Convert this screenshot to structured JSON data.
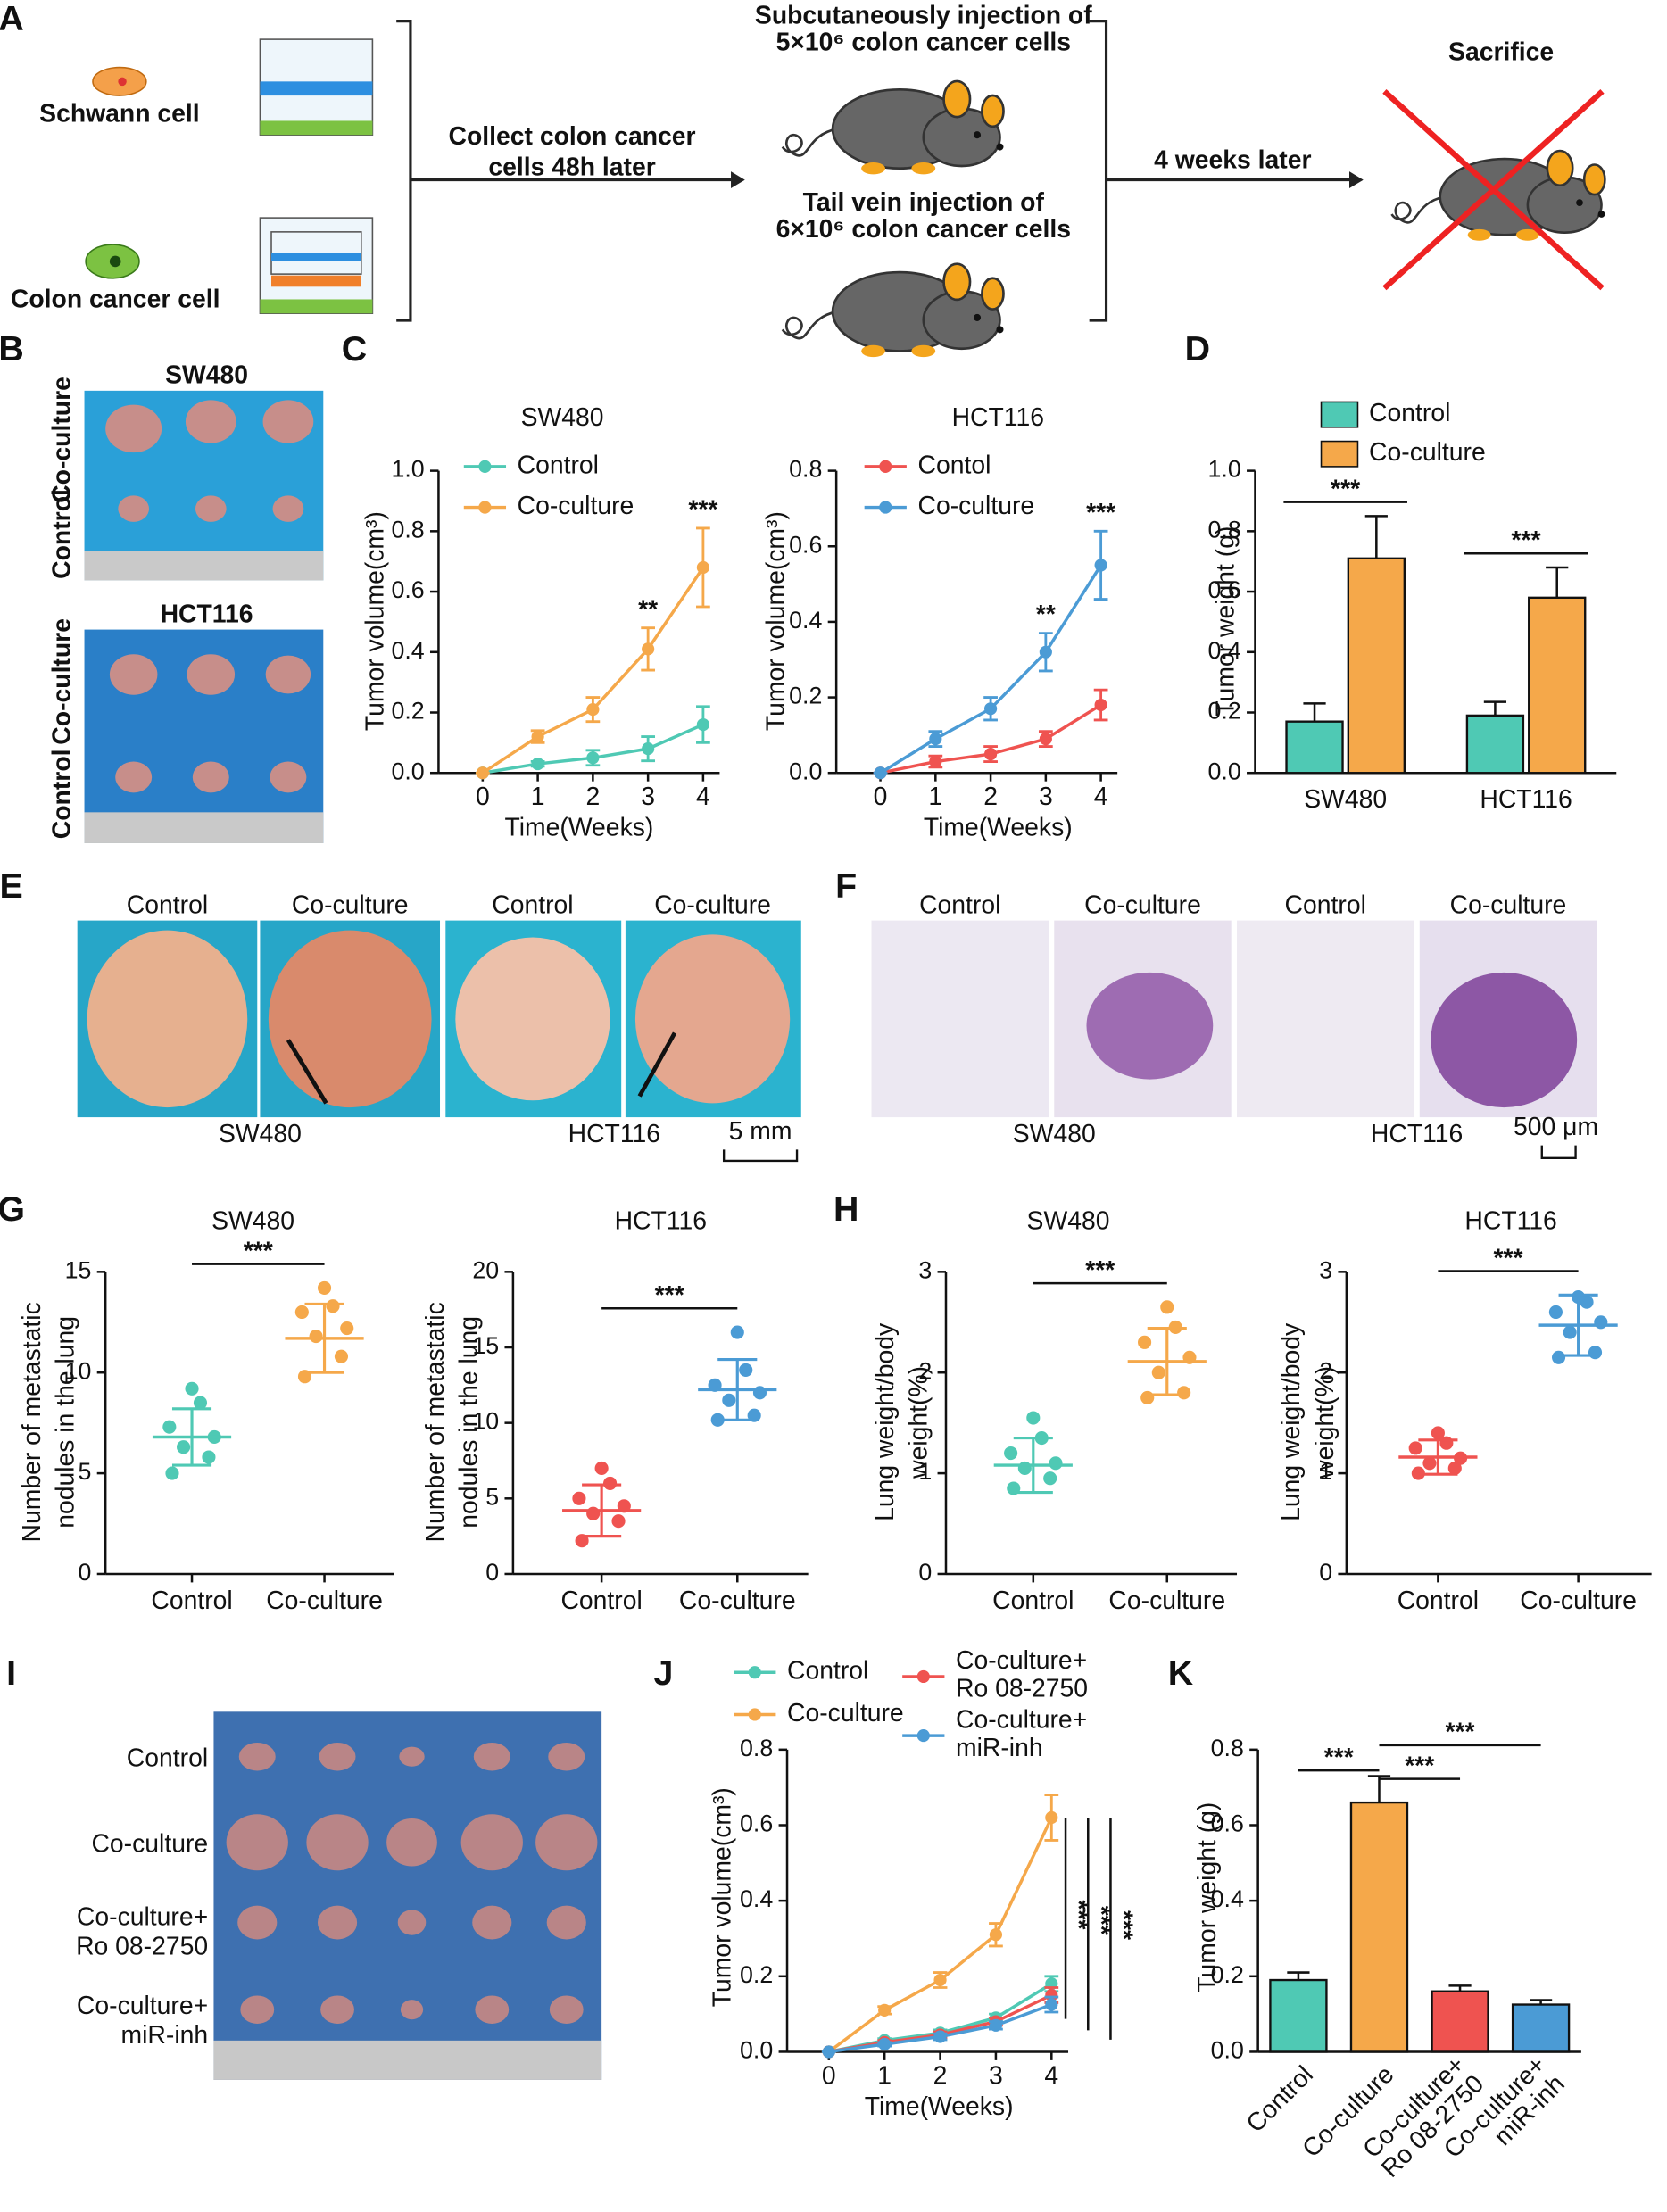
{
  "panel_labels": [
    "A",
    "B",
    "C",
    "D",
    "E",
    "F",
    "G",
    "H",
    "I",
    "J",
    "K"
  ],
  "schematic": {
    "cell_1": "Schwann cell",
    "cell_2": "Colon cancer cell",
    "step_1": [
      "Collect colon cancer",
      "cells 48h later"
    ],
    "injection_1": [
      "Subcutaneously injection of",
      "5×10⁶ colon cancer cells"
    ],
    "injection_2": [
      "Tail vein injection of",
      "6×10⁶ colon cancer cells"
    ],
    "step_2": "4 weeks later",
    "end": "Sacrifice"
  },
  "panel_b": {
    "groups": [
      {
        "title": "SW480",
        "rows": [
          "Co-culture",
          "Control"
        ]
      },
      {
        "title": "HCT116",
        "rows": [
          "Co-culture",
          "Control"
        ]
      }
    ]
  },
  "panel_e": {
    "columns": [
      "Control",
      "Co-culture",
      "Control",
      "Co-culture"
    ],
    "cell_lines": [
      "SW480",
      "HCT116"
    ],
    "scale": "5 mm"
  },
  "panel_f": {
    "columns": [
      "Control",
      "Co-culture",
      "Control",
      "Co-culture"
    ],
    "cell_lines": [
      "SW480",
      "HCT116"
    ],
    "scale": "500 μm"
  },
  "panel_i": {
    "rows": [
      "Control",
      "Co-culture",
      "Co-culture+\nRo 08-2750",
      "Co-culture+\nmiR-inh"
    ]
  },
  "chart_data": [
    {
      "type": "line",
      "title": "SW480",
      "x_label": "Time(Weeks)",
      "y_label": "Tumor volume(cm³)",
      "x": [
        0,
        1,
        2,
        3,
        4
      ],
      "xlim": [
        -0.8,
        4.3
      ],
      "xticks": [
        0,
        1,
        2,
        3,
        4
      ],
      "ylim": [
        0,
        1
      ],
      "yticks": [
        {
          "value": 0,
          "label": "0.0"
        },
        0.2,
        0.4,
        0.6,
        0.8,
        {
          "value": 1,
          "label": "1.0"
        }
      ],
      "series": [
        {
          "name": "Control",
          "color": "#4fc9b4",
          "values": [
            0,
            0.03,
            0.05,
            0.08,
            0.16
          ],
          "errors": [
            0,
            0.008,
            0.025,
            0.04,
            0.06
          ]
        },
        {
          "name": "Co-culture",
          "color": "#f5a84a",
          "values": [
            0,
            0.12,
            0.21,
            0.41,
            0.68
          ],
          "errors": [
            0,
            0.02,
            0.04,
            0.07,
            0.13
          ]
        }
      ],
      "annotations": [
        "**",
        "***"
      ]
    },
    {
      "type": "line",
      "title": "HCT116",
      "x_label": "Time(Weeks)",
      "y_label": "Tumor volume(cm³)",
      "x": [
        0,
        1,
        2,
        3,
        4
      ],
      "xlim": [
        -0.8,
        4.3
      ],
      "xticks": [
        0,
        1,
        2,
        3,
        4
      ],
      "ylim": [
        0,
        0.8
      ],
      "yticks": [
        {
          "value": 0,
          "label": "0.0"
        },
        0.2,
        0.4,
        0.6,
        0.8
      ],
      "series": [
        {
          "name": "Contol",
          "color": "#ef5350",
          "values": [
            0,
            0.03,
            0.05,
            0.09,
            0.18
          ],
          "errors": [
            0,
            0.015,
            0.02,
            0.02,
            0.04
          ]
        },
        {
          "name": "Co-culture",
          "color": "#4b9bd5",
          "values": [
            0,
            0.09,
            0.17,
            0.32,
            0.55
          ],
          "errors": [
            0,
            0.02,
            0.03,
            0.05,
            0.09
          ]
        }
      ],
      "annotations": [
        "**",
        "***"
      ]
    },
    {
      "type": "bar",
      "y_label": "Tumor weight (g)",
      "categories": [
        "SW480",
        "HCT116"
      ],
      "ylim": [
        0,
        1
      ],
      "yticks": [
        {
          "value": 0,
          "label": "0.0"
        },
        0.2,
        0.4,
        0.6,
        0.8,
        {
          "value": 1,
          "label": "1.0"
        }
      ],
      "series": [
        {
          "name": "Control",
          "color": "#4fc9b4",
          "values": [
            0.17,
            0.19
          ],
          "errors": [
            0.06,
            0.045
          ]
        },
        {
          "name": "Co-culture",
          "color": "#f5a84a",
          "values": [
            0.71,
            0.58
          ],
          "errors": [
            0.14,
            0.1
          ]
        }
      ],
      "annotations": [
        "***",
        "***"
      ]
    },
    {
      "type": "dot",
      "title": "SW480",
      "y_label": "Number of metastatic\nnodules in the lung",
      "ylim": [
        0,
        15
      ],
      "yticks": [
        0,
        5,
        10,
        15
      ],
      "groups": [
        {
          "name": "Control",
          "color": "#4fc9b4",
          "points": [
            5,
            5.8,
            6.3,
            6.8,
            7.3,
            8.5,
            9.2
          ],
          "mean": 6.8,
          "sd": 1.4
        },
        {
          "name": "Co-culture",
          "color": "#f5a84a",
          "points": [
            9.8,
            10.8,
            11.8,
            12.2,
            13,
            13.3,
            14.2
          ],
          "mean": 11.7,
          "sd": 1.7
        }
      ],
      "annotations": [
        "***"
      ]
    },
    {
      "type": "dot",
      "title": "HCT116",
      "y_label": "Number of metastatic\nnodules in the lung",
      "ylim": [
        0,
        20
      ],
      "yticks": [
        0,
        5,
        10,
        15,
        20
      ],
      "groups": [
        {
          "name": "Control",
          "color": "#ef5350",
          "points": [
            2.2,
            3.5,
            4,
            4.5,
            5,
            6,
            7
          ],
          "mean": 4.2,
          "sd": 1.7
        },
        {
          "name": "Co-culture",
          "color": "#4b9bd5",
          "points": [
            10.2,
            10.5,
            11.5,
            12,
            12.5,
            13.5,
            16
          ],
          "mean": 12.2,
          "sd": 2
        }
      ],
      "annotations": [
        "***"
      ]
    },
    {
      "type": "dot",
      "title": "SW480",
      "y_label": "Lung weight/body\nweight(%)",
      "ylim": [
        0,
        3
      ],
      "yticks": [
        0,
        1,
        2,
        3
      ],
      "groups": [
        {
          "name": "Control",
          "color": "#4fc9b4",
          "points": [
            0.85,
            0.95,
            1.05,
            1.1,
            1.2,
            1.35,
            1.55
          ],
          "mean": 1.08,
          "sd": 0.27
        },
        {
          "name": "Co-culture",
          "color": "#f5a84a",
          "points": [
            1.75,
            1.8,
            2,
            2.15,
            2.3,
            2.45,
            2.65
          ],
          "mean": 2.11,
          "sd": 0.33
        }
      ],
      "annotations": [
        "***"
      ]
    },
    {
      "type": "dot",
      "title": "HCT116",
      "y_label": "Lung weight/body\nweight(%)",
      "ylim": [
        0,
        3
      ],
      "yticks": [
        0,
        1,
        2,
        3
      ],
      "groups": [
        {
          "name": "Control",
          "color": "#ef5350",
          "points": [
            1,
            1.05,
            1.1,
            1.15,
            1.25,
            1.3,
            1.4
          ],
          "mean": 1.16,
          "sd": 0.17
        },
        {
          "name": "Co-culture",
          "color": "#4b9bd5",
          "points": [
            2.15,
            2.2,
            2.4,
            2.5,
            2.6,
            2.7,
            2.75
          ],
          "mean": 2.47,
          "sd": 0.3
        }
      ],
      "annotations": [
        "***"
      ]
    },
    {
      "type": "line",
      "x_label": "Time(Weeks)",
      "y_label": "Tumor volume(cm³)",
      "x": [
        0,
        1,
        2,
        3,
        4
      ],
      "xlim": [
        -0.75,
        4.3
      ],
      "xticks": [
        0,
        1,
        2,
        3,
        4
      ],
      "ylim": [
        0,
        0.8
      ],
      "yticks": [
        {
          "value": 0,
          "label": "0.0"
        },
        0.2,
        0.4,
        0.6,
        0.8
      ],
      "series": [
        {
          "name": "Control",
          "color": "#4fc9b4",
          "values": [
            0,
            0.03,
            0.05,
            0.09,
            0.18
          ],
          "errors": [
            0,
            0.005,
            0.008,
            0.01,
            0.02
          ]
        },
        {
          "name": "Co-culture",
          "color": "#f5a84a",
          "values": [
            0,
            0.11,
            0.19,
            0.31,
            0.62
          ],
          "errors": [
            0,
            0.01,
            0.02,
            0.03,
            0.06
          ]
        },
        {
          "name": "Co-culture+\nRo 08-2750",
          "color": "#ef5350",
          "values": [
            0,
            0.025,
            0.045,
            0.08,
            0.15
          ],
          "errors": [
            0,
            0.005,
            0.008,
            0.01,
            0.02
          ]
        },
        {
          "name": "Co-culture+\nmiR-inh",
          "color": "#4b9bd5",
          "values": [
            0,
            0.02,
            0.04,
            0.07,
            0.125
          ],
          "errors": [
            0,
            0.005,
            0.008,
            0.01,
            0.02
          ]
        }
      ],
      "annotations": [
        "***",
        "***",
        "***"
      ]
    },
    {
      "type": "bar",
      "y_label": "Tumor weight (g)",
      "categories": [
        "Control",
        "Co-culture",
        "Co-culture+\nRo 08-2750",
        "Co-culture+\nmiR-inh"
      ],
      "ylim": [
        0,
        0.8
      ],
      "yticks": [
        {
          "value": 0,
          "label": "0.0"
        },
        0.2,
        0.4,
        0.6,
        0.8
      ],
      "values": [
        0.19,
        0.66,
        0.16,
        0.125
      ],
      "errors": [
        0.02,
        0.07,
        0.015,
        0.012
      ],
      "colors": [
        "#4fc9b4",
        "#f5a84a",
        "#ef5350",
        "#4b9bd5"
      ],
      "annotations": [
        "***",
        "***",
        "***"
      ]
    }
  ]
}
